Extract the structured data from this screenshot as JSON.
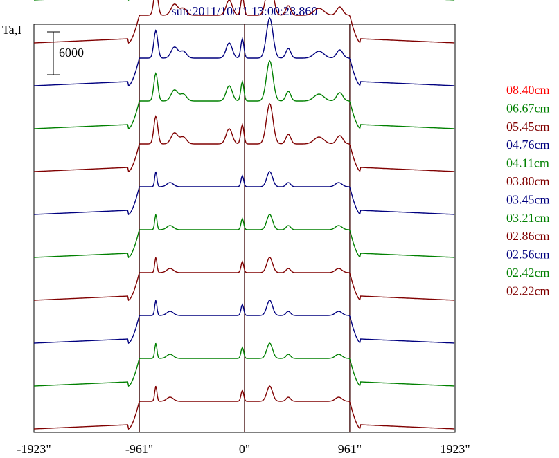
{
  "chart_data": {
    "type": "line",
    "title": "sun:2011/10/11 13:00:28.860",
    "ylabel": "Ta,I",
    "xlabel": "",
    "x_tick_labels": [
      "-1923\"",
      "-961\"",
      "0\"",
      "961\"",
      "1923\""
    ],
    "x_ticks": [
      -1923,
      -961,
      0,
      961,
      1923
    ],
    "xlim": [
      -1923,
      1923
    ],
    "vertical_lines": [
      -961,
      0,
      961
    ],
    "scale_bar": {
      "label": "6000",
      "value": 6000
    },
    "legend_position": "right",
    "grid": false,
    "series": [
      {
        "name": "08.40cm",
        "color": "#ff0000",
        "base": 66000,
        "shape": "wavy"
      },
      {
        "name": "06.67cm",
        "color": "#008000",
        "base": 60000,
        "shape": "wavy"
      },
      {
        "name": "05.45cm",
        "color": "#800000",
        "base": 54000,
        "shape": "wavy"
      },
      {
        "name": "04.76cm",
        "color": "#00007f",
        "base": 48000,
        "shape": "wavy"
      },
      {
        "name": "04.11cm",
        "color": "#008000",
        "base": 42000,
        "shape": "wavy"
      },
      {
        "name": "03.80cm",
        "color": "#800000",
        "base": 36000,
        "shape": "wavy"
      },
      {
        "name": "03.45cm",
        "color": "#00007f",
        "base": 30000,
        "shape": "flat"
      },
      {
        "name": "03.21cm",
        "color": "#008000",
        "base": 24000,
        "shape": "flat"
      },
      {
        "name": "02.86cm",
        "color": "#800000",
        "base": 18000,
        "shape": "flat"
      },
      {
        "name": "02.56cm",
        "color": "#00007f",
        "base": 12000,
        "shape": "flat"
      },
      {
        "name": "02.42cm",
        "color": "#008000",
        "base": 6000,
        "shape": "flat"
      },
      {
        "name": "02.22cm",
        "color": "#800000",
        "base": 0,
        "shape": "flat"
      }
    ]
  }
}
